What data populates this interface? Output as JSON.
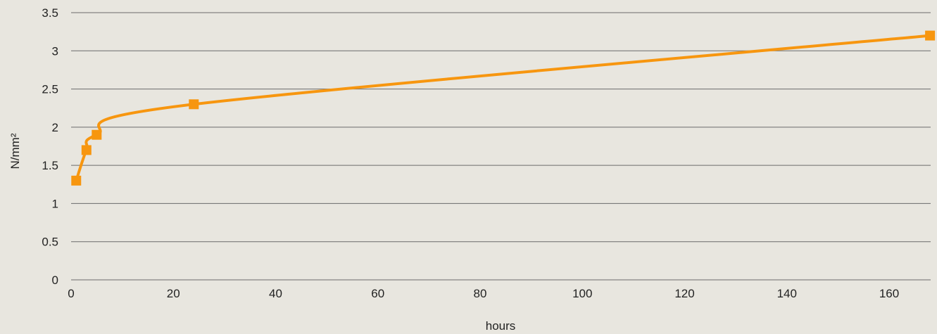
{
  "chart_data": {
    "type": "line",
    "title": "",
    "xlabel": "hours",
    "ylabel": "N/mm²",
    "xlim": [
      0,
      168
    ],
    "ylim": [
      0,
      3.5
    ],
    "x_ticks": [
      "0",
      "20",
      "40",
      "60",
      "80",
      "100",
      "120",
      "140",
      "160"
    ],
    "y_ticks": [
      "0",
      "0.5",
      "1",
      "1.5",
      "2",
      "2.5",
      "3",
      "3.5"
    ],
    "grid": "horizontal",
    "legend": "none",
    "series": [
      {
        "x": [
          1,
          3,
          5,
          24,
          168
        ],
        "y": [
          1.3,
          1.7,
          1.9,
          2.3,
          3.2
        ],
        "color": "#f7960f",
        "marker": "square",
        "smooth": true
      }
    ]
  },
  "colors": {
    "background": "#e8e6df",
    "grid": "#6b6b6b",
    "text": "#222222"
  }
}
